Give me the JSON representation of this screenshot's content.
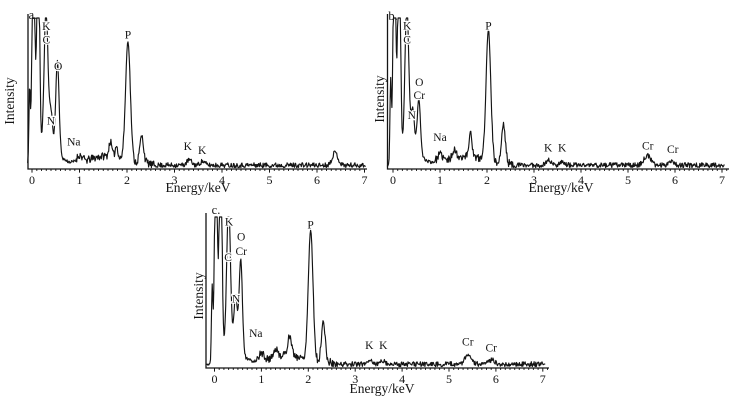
{
  "figure": {
    "background_color": "#ffffff",
    "line_color": "#141414",
    "description_labels": {
      "x_axis": "Energy/keV",
      "y_axis": "Intensity"
    }
  },
  "chart_data": [
    {
      "id": "a",
      "type": "line",
      "panel_label": "a.",
      "xlabel": "Energy/keV",
      "ylabel": "Intensity",
      "xlim": [
        -0.09,
        7.02
      ],
      "xticks": [
        0,
        1,
        2,
        3,
        4,
        5,
        6,
        7
      ],
      "noise_seed": 11,
      "peaks": [
        {
          "x": -0.05,
          "h": 0.5,
          "w": 0.015
        },
        {
          "x": 0.03,
          "h": 1.6,
          "w": 0.028
        },
        {
          "x": 0.13,
          "h": 1.6,
          "w": 0.028
        },
        {
          "x": 0.295,
          "h": 0.95,
          "w": 0.04
        },
        {
          "x": 0.4,
          "h": 0.24,
          "w": 0.035
        },
        {
          "x": 0.535,
          "h": 0.62,
          "w": 0.035
        },
        {
          "x": 0.35,
          "h": 0.1,
          "w": 0.2
        },
        {
          "x": 1.0,
          "h": 0.045,
          "w": 0.06
        },
        {
          "x": 1.55,
          "h": 0.05,
          "w": 0.3
        },
        {
          "x": 1.65,
          "h": 0.1,
          "w": 0.03
        },
        {
          "x": 1.78,
          "h": 0.08,
          "w": 0.03
        },
        {
          "x": 2.02,
          "h": 0.8,
          "w": 0.05
        },
        {
          "x": 2.31,
          "h": 0.18,
          "w": 0.04
        },
        {
          "x": 3.31,
          "h": 0.035,
          "w": 0.05
        },
        {
          "x": 3.59,
          "h": 0.025,
          "w": 0.05
        },
        {
          "x": 6.38,
          "h": 0.085,
          "w": 0.06
        }
      ],
      "labels": [
        {
          "text": "K",
          "x": 0.3,
          "y": 0.92
        },
        {
          "text": "C",
          "x": 0.3,
          "y": 0.83
        },
        {
          "text": "O",
          "x": 0.55,
          "y": 0.655
        },
        {
          "text": "N",
          "x": 0.4,
          "y": 0.295
        },
        {
          "text": "Na",
          "x": 0.88,
          "y": 0.155
        },
        {
          "text": "P",
          "x": 2.02,
          "y": 0.865
        },
        {
          "text": "K",
          "x": 3.28,
          "y": 0.125
        },
        {
          "text": "K",
          "x": 3.58,
          "y": 0.1
        }
      ]
    },
    {
      "id": "b",
      "type": "line",
      "panel_label": "b.",
      "xlabel": "Energy/keV",
      "ylabel": "Intensity",
      "xlim": [
        -0.12,
        7.05
      ],
      "xticks": [
        0,
        1,
        2,
        3,
        4,
        5,
        6,
        7
      ],
      "noise_seed": 23,
      "peaks": [
        {
          "x": -0.05,
          "h": 0.55,
          "w": 0.015
        },
        {
          "x": 0.03,
          "h": 1.6,
          "w": 0.028
        },
        {
          "x": 0.13,
          "h": 1.6,
          "w": 0.028
        },
        {
          "x": 0.295,
          "h": 0.97,
          "w": 0.04
        },
        {
          "x": 0.42,
          "h": 0.27,
          "w": 0.035
        },
        {
          "x": 0.55,
          "h": 0.37,
          "w": 0.035
        },
        {
          "x": 0.35,
          "h": 0.1,
          "w": 0.2
        },
        {
          "x": 1.0,
          "h": 0.05,
          "w": 0.06
        },
        {
          "x": 1.3,
          "h": 0.06,
          "w": 0.04
        },
        {
          "x": 1.55,
          "h": 0.05,
          "w": 0.3
        },
        {
          "x": 1.65,
          "h": 0.17,
          "w": 0.03
        },
        {
          "x": 2.03,
          "h": 0.88,
          "w": 0.05
        },
        {
          "x": 2.35,
          "h": 0.26,
          "w": 0.04
        },
        {
          "x": 3.31,
          "h": 0.035,
          "w": 0.05
        },
        {
          "x": 3.59,
          "h": 0.025,
          "w": 0.05
        },
        {
          "x": 5.41,
          "h": 0.065,
          "w": 0.07
        },
        {
          "x": 5.92,
          "h": 0.03,
          "w": 0.06
        }
      ],
      "labels": [
        {
          "text": "K",
          "x": 0.3,
          "y": 0.925
        },
        {
          "text": "C",
          "x": 0.3,
          "y": 0.83
        },
        {
          "text": "O",
          "x": 0.56,
          "y": 0.55
        },
        {
          "text": "Cr",
          "x": 0.56,
          "y": 0.465
        },
        {
          "text": "N",
          "x": 0.4,
          "y": 0.33
        },
        {
          "text": "Na",
          "x": 1.0,
          "y": 0.185
        },
        {
          "text": "P",
          "x": 2.03,
          "y": 0.925
        },
        {
          "text": "K",
          "x": 3.3,
          "y": 0.115
        },
        {
          "text": "K",
          "x": 3.6,
          "y": 0.115
        },
        {
          "text": "Cr",
          "x": 5.42,
          "y": 0.13
        },
        {
          "text": "Cr",
          "x": 5.95,
          "y": 0.105
        }
      ]
    },
    {
      "id": "c",
      "type": "line",
      "panel_label": "c.",
      "xlabel": "Energy/keV",
      "ylabel": "Intensity",
      "xlim": [
        -0.17,
        7.05
      ],
      "xticks": [
        0,
        1,
        2,
        3,
        4,
        5,
        6,
        7
      ],
      "noise_seed": 5,
      "peaks": [
        {
          "x": -0.05,
          "h": 0.5,
          "w": 0.015
        },
        {
          "x": 0.03,
          "h": 1.6,
          "w": 0.028
        },
        {
          "x": 0.13,
          "h": 1.6,
          "w": 0.028
        },
        {
          "x": 0.3,
          "h": 0.97,
          "w": 0.04
        },
        {
          "x": 0.45,
          "h": 0.36,
          "w": 0.035
        },
        {
          "x": 0.56,
          "h": 0.63,
          "w": 0.035
        },
        {
          "x": 0.35,
          "h": 0.1,
          "w": 0.2
        },
        {
          "x": 1.0,
          "h": 0.05,
          "w": 0.06
        },
        {
          "x": 1.3,
          "h": 0.05,
          "w": 0.05
        },
        {
          "x": 1.6,
          "h": 0.13,
          "w": 0.04
        },
        {
          "x": 1.55,
          "h": 0.05,
          "w": 0.3
        },
        {
          "x": 2.05,
          "h": 0.87,
          "w": 0.05
        },
        {
          "x": 2.32,
          "h": 0.27,
          "w": 0.04
        },
        {
          "x": 3.31,
          "h": 0.03,
          "w": 0.05
        },
        {
          "x": 3.59,
          "h": 0.025,
          "w": 0.05
        },
        {
          "x": 5.41,
          "h": 0.06,
          "w": 0.07
        },
        {
          "x": 5.92,
          "h": 0.028,
          "w": 0.06
        }
      ],
      "labels": [
        {
          "text": "K",
          "x": 0.31,
          "y": 0.945
        },
        {
          "text": "C",
          "x": 0.29,
          "y": 0.71
        },
        {
          "text": "O",
          "x": 0.57,
          "y": 0.845
        },
        {
          "text": "Cr",
          "x": 0.57,
          "y": 0.75
        },
        {
          "text": "N",
          "x": 0.46,
          "y": 0.435
        },
        {
          "text": "Na",
          "x": 0.88,
          "y": 0.205
        },
        {
          "text": "P",
          "x": 2.05,
          "y": 0.925
        },
        {
          "text": "K",
          "x": 3.3,
          "y": 0.125
        },
        {
          "text": "K",
          "x": 3.6,
          "y": 0.125
        },
        {
          "text": "Cr",
          "x": 5.4,
          "y": 0.15
        },
        {
          "text": "Cr",
          "x": 5.9,
          "y": 0.11
        }
      ]
    }
  ]
}
